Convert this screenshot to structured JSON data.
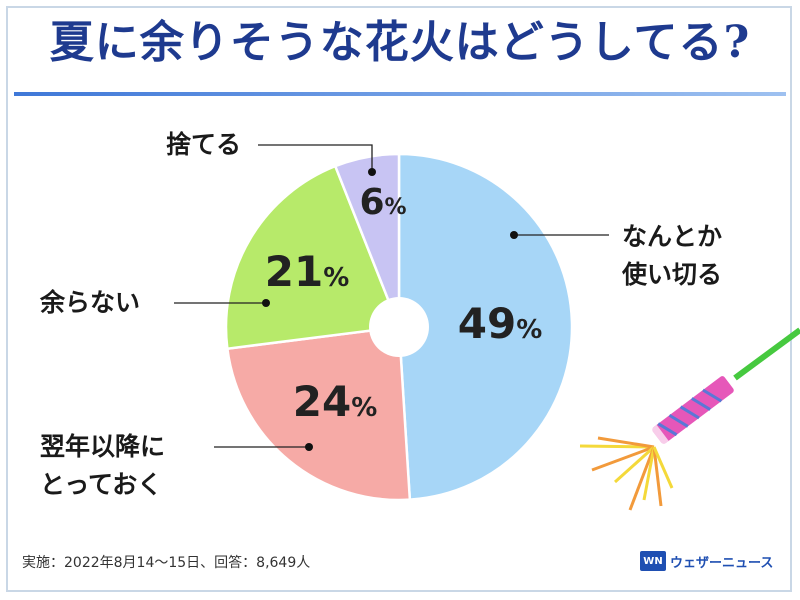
{
  "title": "夏に余りそうな花火はどうしてる?",
  "chart_data": {
    "type": "pie",
    "slices": [
      {
        "label": "なんとか使い切る",
        "label_lines": [
          "なんとか",
          "使い切る"
        ],
        "value": 49,
        "color": "#a7d6f7"
      },
      {
        "label": "翌年以降にとっておく",
        "label_lines": [
          "翌年以降に",
          "とっておく"
        ],
        "value": 24,
        "color": "#f6aaa6"
      },
      {
        "label": "余らない",
        "label_lines": [
          "余らない"
        ],
        "value": 21,
        "color": "#b7ea6a"
      },
      {
        "label": "捨てる",
        "label_lines": [
          "捨てる"
        ],
        "value": 6,
        "color": "#c8c4f3"
      }
    ],
    "value_suffix": "%",
    "donut_hole": true,
    "start": "12 o'clock, clockwise"
  },
  "footer": "実施：2022年8月14～15日、回答：8,649人",
  "brand": {
    "logo_text": "WN",
    "name": "ウェザーニュース",
    "color": "#1f4fb2"
  },
  "decoration": {
    "icon": "firework-sparkler-icon",
    "colors": [
      "#46c93f",
      "#e657b9",
      "#f29a3b",
      "#f4d93a"
    ]
  }
}
